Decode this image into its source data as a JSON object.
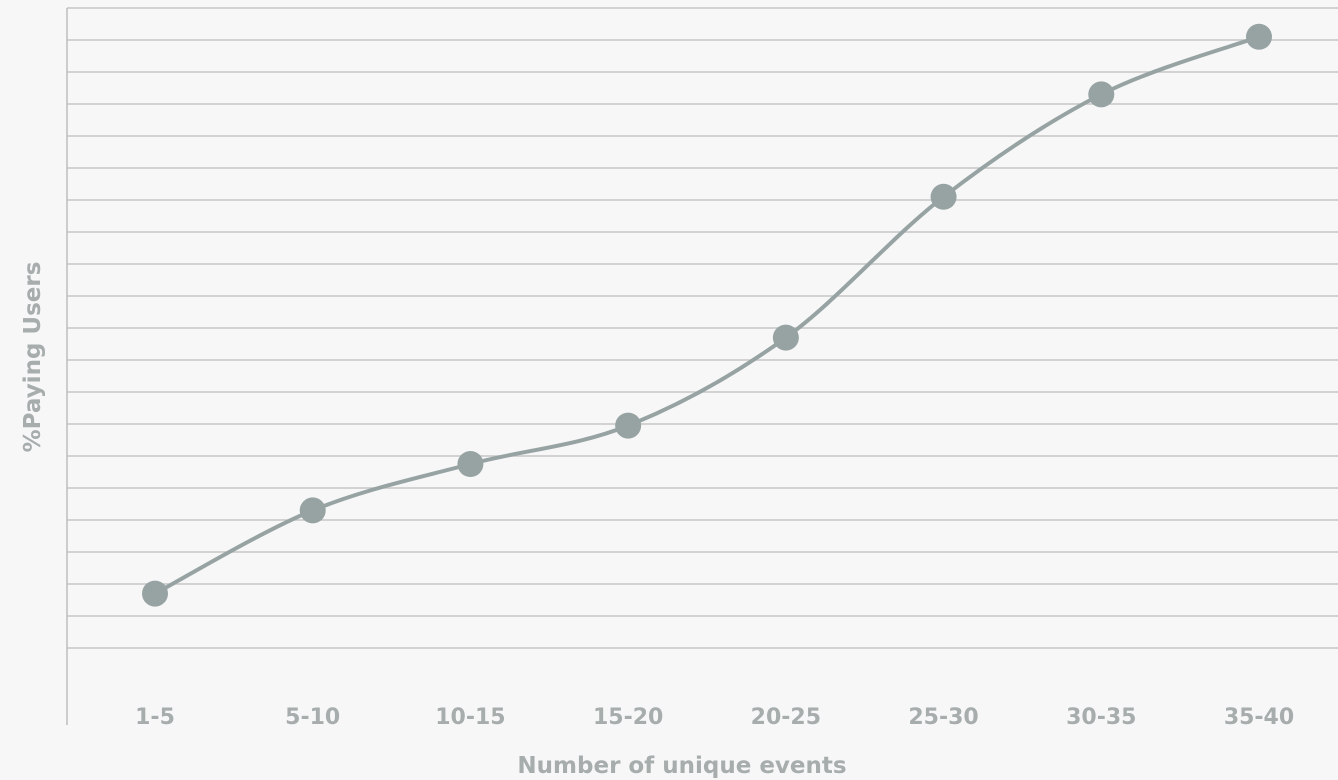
{
  "chart_data": {
    "type": "line",
    "title": "",
    "xlabel": "Number of unique events",
    "ylabel": "%Paying Users",
    "categories": [
      "1-5",
      "5-10",
      "10-15",
      "15-20",
      "20-25",
      "25-30",
      "30-35",
      "35-40"
    ],
    "values": [
      2.7,
      5.3,
      6.75,
      7.95,
      10.7,
      15.1,
      18.3,
      20.1
    ],
    "ylim": [
      0,
      21
    ],
    "y_tick_step": 1,
    "y_tick_labels_shown": false,
    "grid": "horizontal",
    "smooth": true,
    "colors": {
      "line": "#97a3a3",
      "marker": "#97a3a3",
      "grid": "#c6c6c6",
      "axis": "#bdbdbd",
      "text": "#a7acac",
      "background": "#f7f7f7"
    }
  }
}
